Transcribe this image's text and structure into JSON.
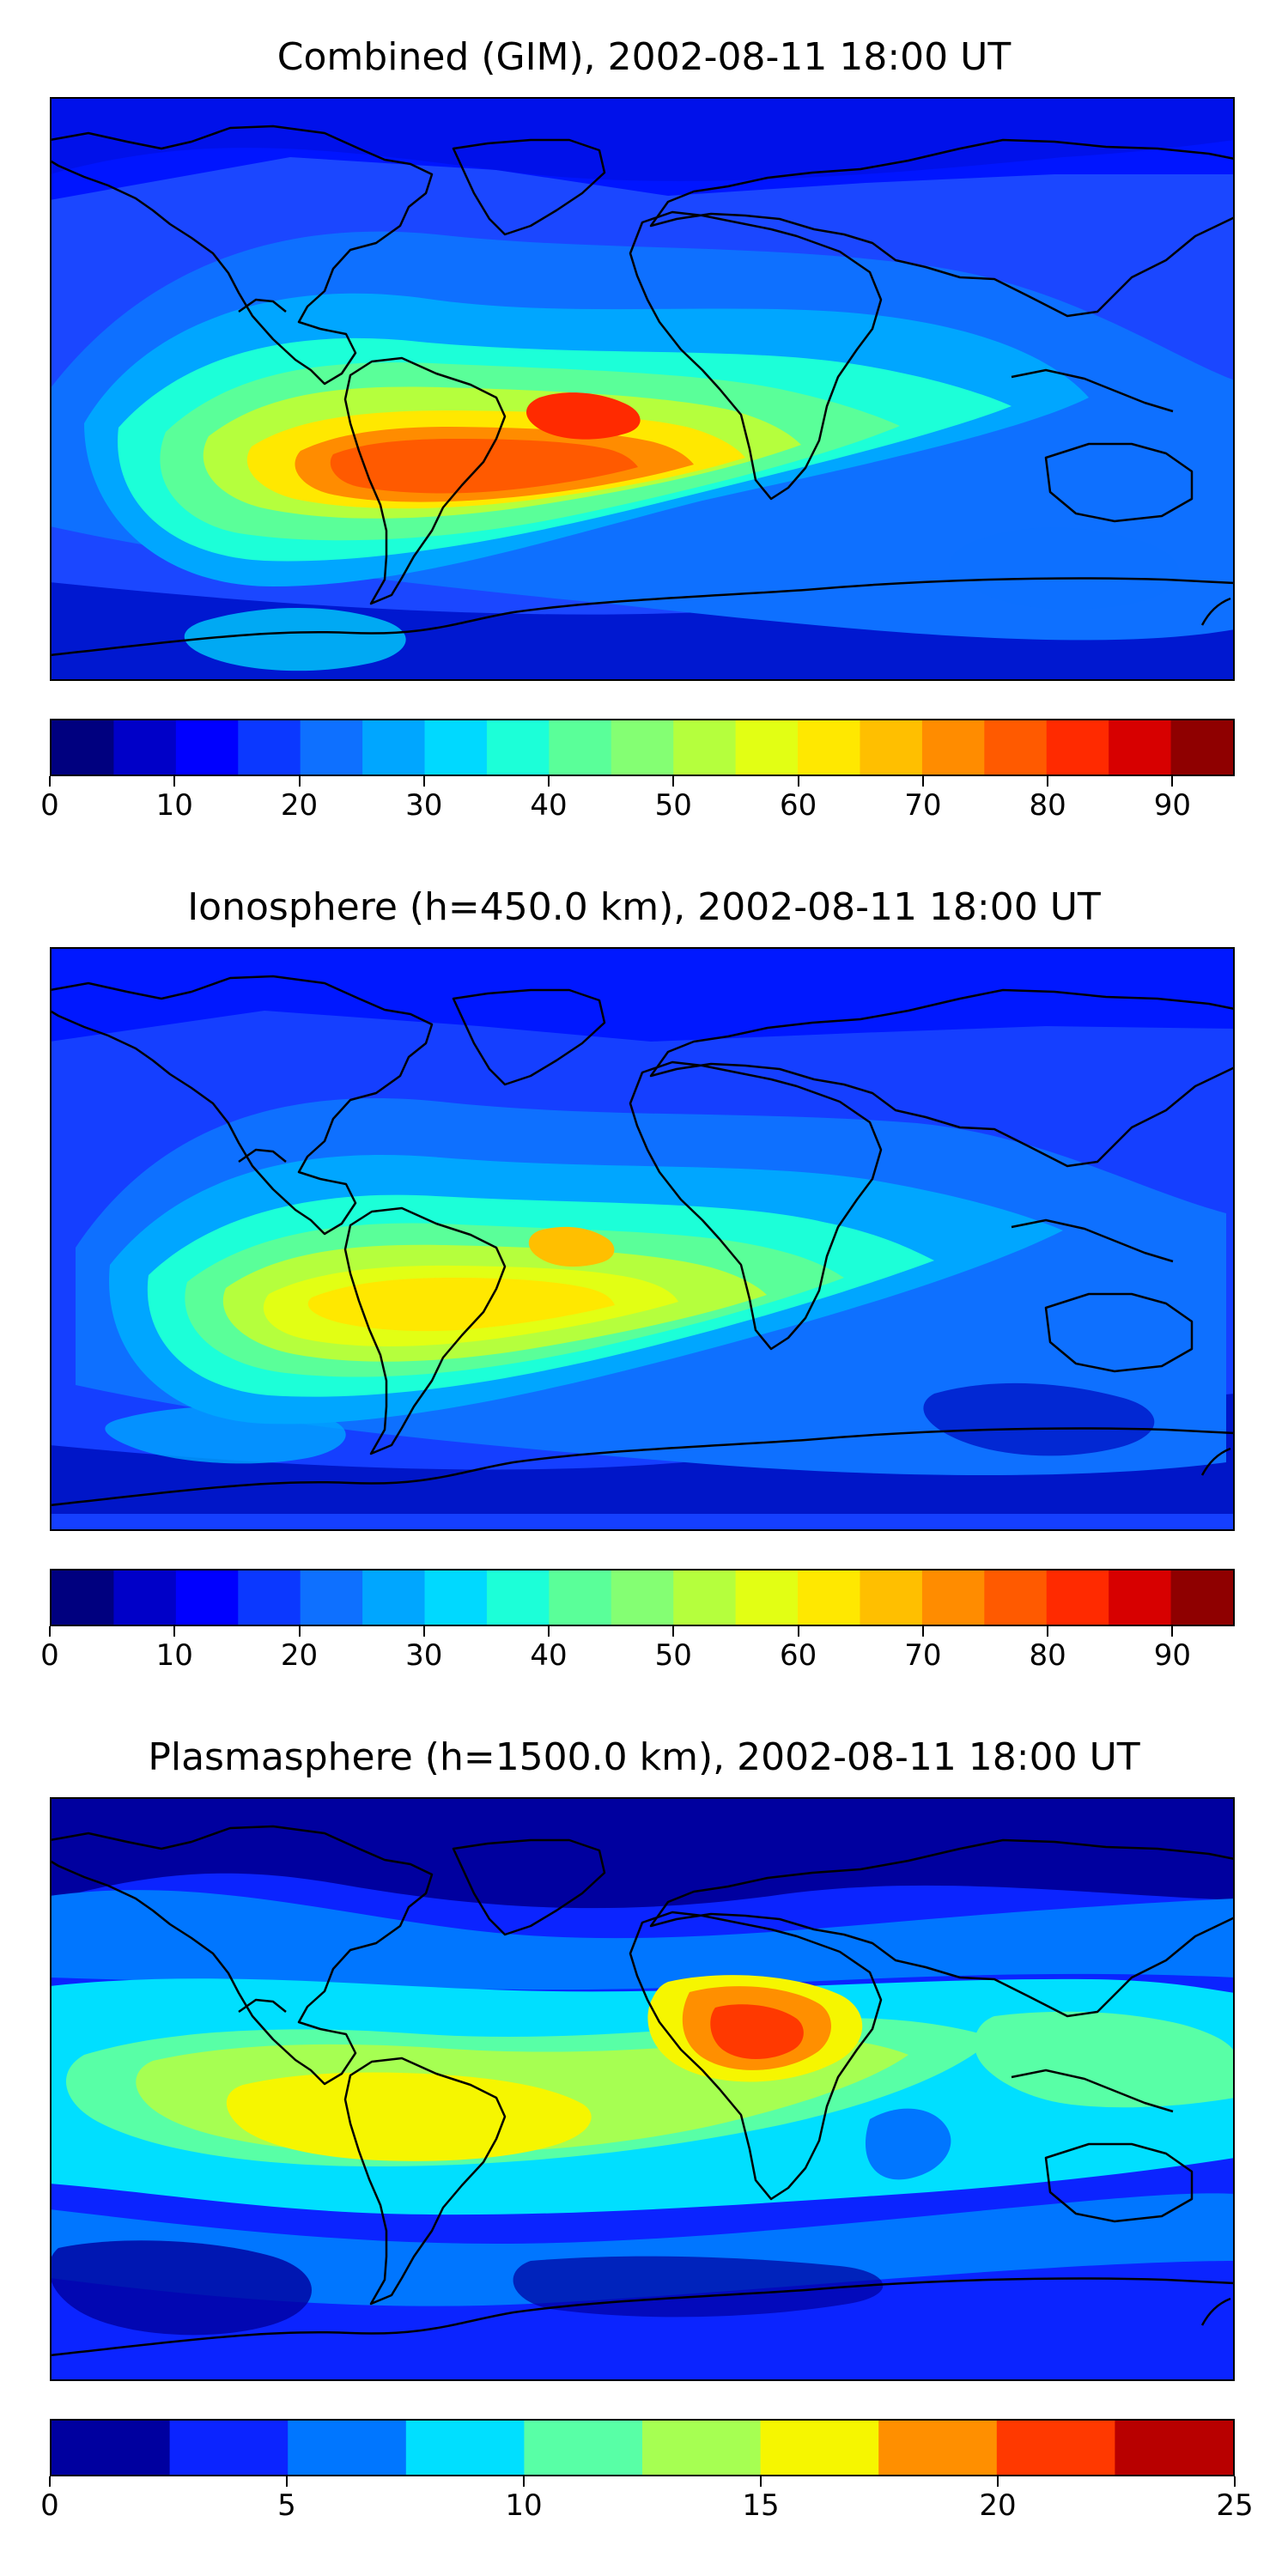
{
  "panels": [
    {
      "title": "Combined (GIM), 2002-08-11 18:00 UT",
      "colorbar": {
        "min": 0,
        "max": 95,
        "bin": 5,
        "ticks": [
          0,
          10,
          20,
          30,
          40,
          50,
          60,
          70,
          80,
          90
        ],
        "tick_labels": [
          "0",
          "10",
          "20",
          "30",
          "40",
          "50",
          "60",
          "70",
          "80",
          "90"
        ],
        "colors": [
          "#00007f",
          "#0000c8",
          "#0000ff",
          "#0b38ff",
          "#0e70ff",
          "#00a6ff",
          "#00d9ff",
          "#1cffd8",
          "#5aff99",
          "#84ff73",
          "#b5ff3d",
          "#e2ff14",
          "#ffe800",
          "#ffbf00",
          "#ff8c00",
          "#ff5a00",
          "#ff2a00",
          "#d70000",
          "#8f0000"
        ]
      }
    },
    {
      "title": "Ionosphere  (h=450.0 km), 2002-08-11 18:00 UT",
      "colorbar": {
        "min": 0,
        "max": 95,
        "bin": 5,
        "ticks": [
          0,
          10,
          20,
          30,
          40,
          50,
          60,
          70,
          80,
          90
        ],
        "tick_labels": [
          "0",
          "10",
          "20",
          "30",
          "40",
          "50",
          "60",
          "70",
          "80",
          "90"
        ],
        "colors": [
          "#00007f",
          "#0000c8",
          "#0000ff",
          "#0b38ff",
          "#0e70ff",
          "#00a6ff",
          "#00d9ff",
          "#1cffd8",
          "#5aff99",
          "#84ff73",
          "#b5ff3d",
          "#e2ff14",
          "#ffe800",
          "#ffbf00",
          "#ff8c00",
          "#ff5a00",
          "#ff2a00",
          "#d70000",
          "#8f0000"
        ]
      }
    },
    {
      "title": "Plasmasphere (h=1500.0 km), 2002-08-11 18:00 UT",
      "colorbar": {
        "min": 0,
        "max": 25,
        "bin": 2.5,
        "ticks": [
          0,
          5,
          10,
          15,
          20,
          25
        ],
        "tick_labels": [
          "0",
          "5",
          "10",
          "15",
          "20",
          "25"
        ],
        "colors": [
          "#00009f",
          "#0b24ff",
          "#0076ff",
          "#00dfff",
          "#58ffa6",
          "#a6ff52",
          "#f6f600",
          "#ff8f00",
          "#ff3900",
          "#b80000"
        ]
      }
    }
  ]
}
